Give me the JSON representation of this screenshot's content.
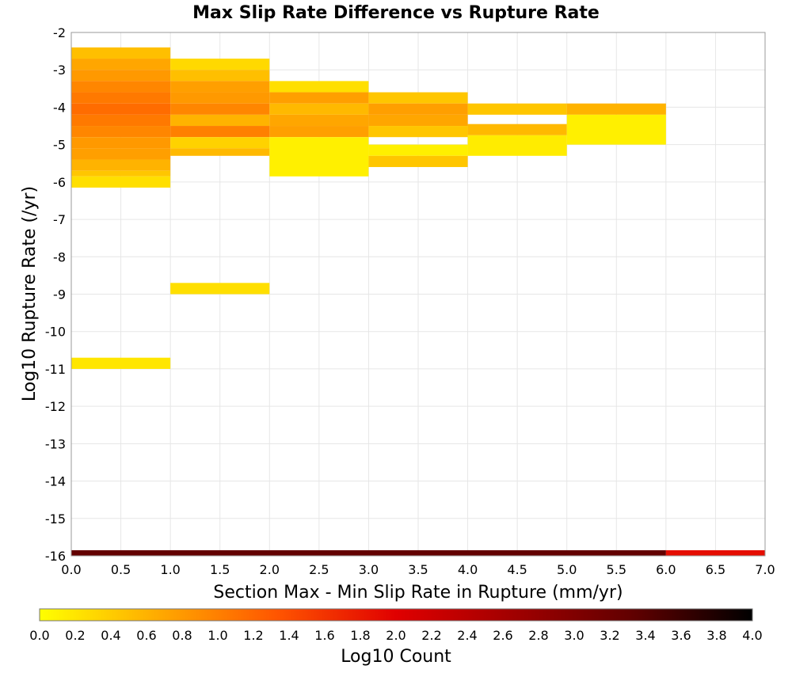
{
  "chart_data": {
    "type": "heatmap",
    "title": "Max Slip Rate Difference vs Rupture Rate",
    "xlabel": "Section Max - Min Slip Rate in Rupture (mm/yr)",
    "ylabel": "Log10 Rupture Rate (/yr)",
    "xlim": [
      0,
      7
    ],
    "ylim": [
      -16,
      -2
    ],
    "x_ticks": [
      "0.0",
      "0.5",
      "1.0",
      "1.5",
      "2.0",
      "2.5",
      "3.0",
      "3.5",
      "4.0",
      "4.5",
      "5.0",
      "5.5",
      "6.0",
      "6.5",
      "7.0"
    ],
    "y_ticks": [
      "-2",
      "-3",
      "-4",
      "-5",
      "-6",
      "-7",
      "-8",
      "-9",
      "-10",
      "-11",
      "-12",
      "-13",
      "-14",
      "-15",
      "-16"
    ],
    "grid": true,
    "colorbar": {
      "label": "Log10 Count",
      "range": [
        0,
        4
      ],
      "ticks": [
        "0.0",
        "0.2",
        "0.4",
        "0.6",
        "0.8",
        "1.0",
        "1.2",
        "1.4",
        "1.6",
        "1.8",
        "2.0",
        "2.2",
        "2.4",
        "2.6",
        "2.8",
        "3.0",
        "3.2",
        "3.4",
        "3.6",
        "3.8",
        "4.0"
      ],
      "colors": [
        "#ffff00",
        "#ffaa00",
        "#ff5500",
        "#e00000",
        "#a00000",
        "#600000",
        "#000000"
      ]
    },
    "cells": [
      {
        "x0": 0,
        "x1": 1,
        "y0": -2.7,
        "y1": -2.4,
        "value": 0.5
      },
      {
        "x0": 0,
        "x1": 1,
        "y0": -3.0,
        "y1": -2.7,
        "value": 0.7
      },
      {
        "x0": 0,
        "x1": 1,
        "y0": -3.3,
        "y1": -3.0,
        "value": 0.8
      },
      {
        "x0": 0,
        "x1": 1,
        "y0": -3.6,
        "y1": -3.3,
        "value": 0.95
      },
      {
        "x0": 0,
        "x1": 1,
        "y0": -3.9,
        "y1": -3.6,
        "value": 1.05
      },
      {
        "x0": 0,
        "x1": 1,
        "y0": -4.2,
        "y1": -3.9,
        "value": 1.15
      },
      {
        "x0": 0,
        "x1": 1,
        "y0": -4.5,
        "y1": -4.2,
        "value": 1.05
      },
      {
        "x0": 0,
        "x1": 1,
        "y0": -4.8,
        "y1": -4.5,
        "value": 0.95
      },
      {
        "x0": 0,
        "x1": 1,
        "y0": -5.1,
        "y1": -4.8,
        "value": 0.8
      },
      {
        "x0": 0,
        "x1": 1,
        "y0": -5.4,
        "y1": -5.1,
        "value": 0.75
      },
      {
        "x0": 0,
        "x1": 1,
        "y0": -5.7,
        "y1": -5.4,
        "value": 0.6
      },
      {
        "x0": 0,
        "x1": 1,
        "y0": -5.85,
        "y1": -5.7,
        "value": 0.45
      },
      {
        "x0": 0,
        "x1": 1,
        "y0": -6.15,
        "y1": -5.85,
        "value": 0.25
      },
      {
        "x0": 0,
        "x1": 1,
        "y0": -11.0,
        "y1": -10.7,
        "value": 0.2
      },
      {
        "x0": 1,
        "x1": 2,
        "y0": -3.0,
        "y1": -2.7,
        "value": 0.3
      },
      {
        "x0": 1,
        "x1": 2,
        "y0": -3.3,
        "y1": -3.0,
        "value": 0.5
      },
      {
        "x0": 1,
        "x1": 2,
        "y0": -3.6,
        "y1": -3.3,
        "value": 0.75
      },
      {
        "x0": 1,
        "x1": 2,
        "y0": -3.9,
        "y1": -3.6,
        "value": 0.8
      },
      {
        "x0": 1,
        "x1": 2,
        "y0": -4.2,
        "y1": -3.9,
        "value": 0.95
      },
      {
        "x0": 1,
        "x1": 2,
        "y0": -4.5,
        "y1": -4.2,
        "value": 0.6
      },
      {
        "x0": 1,
        "x1": 2,
        "y0": -4.8,
        "y1": -4.5,
        "value": 1.0
      },
      {
        "x0": 1,
        "x1": 2,
        "y0": -5.1,
        "y1": -4.8,
        "value": 0.35
      },
      {
        "x0": 1,
        "x1": 2,
        "y0": -5.3,
        "y1": -5.1,
        "value": 0.55
      },
      {
        "x0": 1,
        "x1": 2,
        "y0": -9.0,
        "y1": -8.7,
        "value": 0.25
      },
      {
        "x0": 2,
        "x1": 3,
        "y0": -3.6,
        "y1": -3.3,
        "value": 0.25
      },
      {
        "x0": 2,
        "x1": 3,
        "y0": -3.9,
        "y1": -3.6,
        "value": 0.75
      },
      {
        "x0": 2,
        "x1": 3,
        "y0": -4.2,
        "y1": -3.9,
        "value": 0.55
      },
      {
        "x0": 2,
        "x1": 3,
        "y0": -4.5,
        "y1": -4.2,
        "value": 0.7
      },
      {
        "x0": 2,
        "x1": 3,
        "y0": -4.8,
        "y1": -4.5,
        "value": 0.75
      },
      {
        "x0": 2,
        "x1": 3,
        "y0": -5.85,
        "y1": -4.8,
        "value": 0.12
      },
      {
        "x0": 3,
        "x1": 4,
        "y0": -3.9,
        "y1": -3.6,
        "value": 0.45
      },
      {
        "x0": 3,
        "x1": 4,
        "y0": -4.2,
        "y1": -3.9,
        "value": 0.75
      },
      {
        "x0": 3,
        "x1": 4,
        "y0": -4.5,
        "y1": -4.2,
        "value": 0.7
      },
      {
        "x0": 3,
        "x1": 4,
        "y0": -4.8,
        "y1": -4.5,
        "value": 0.45
      },
      {
        "x0": 3,
        "x1": 4,
        "y0": -5.3,
        "y1": -5.0,
        "value": 0.12
      },
      {
        "x0": 3,
        "x1": 4,
        "y0": -5.6,
        "y1": -5.3,
        "value": 0.45
      },
      {
        "x0": 4,
        "x1": 5,
        "y0": -4.2,
        "y1": -3.9,
        "value": 0.45
      },
      {
        "x0": 4,
        "x1": 5,
        "y0": -4.75,
        "y1": -4.45,
        "value": 0.55
      },
      {
        "x0": 4,
        "x1": 5,
        "y0": -5.3,
        "y1": -4.75,
        "value": 0.15
      },
      {
        "x0": 5,
        "x1": 6,
        "y0": -4.2,
        "y1": -3.9,
        "value": 0.6
      },
      {
        "x0": 5,
        "x1": 6,
        "y0": -5.0,
        "y1": -4.2,
        "value": 0.12
      },
      {
        "x0": 0,
        "x1": 6,
        "y0": -16.0,
        "y1": -15.85,
        "value": 3.3
      },
      {
        "x0": 6,
        "x1": 7,
        "y0": -16.0,
        "y1": -15.85,
        "value": 1.9
      }
    ]
  }
}
